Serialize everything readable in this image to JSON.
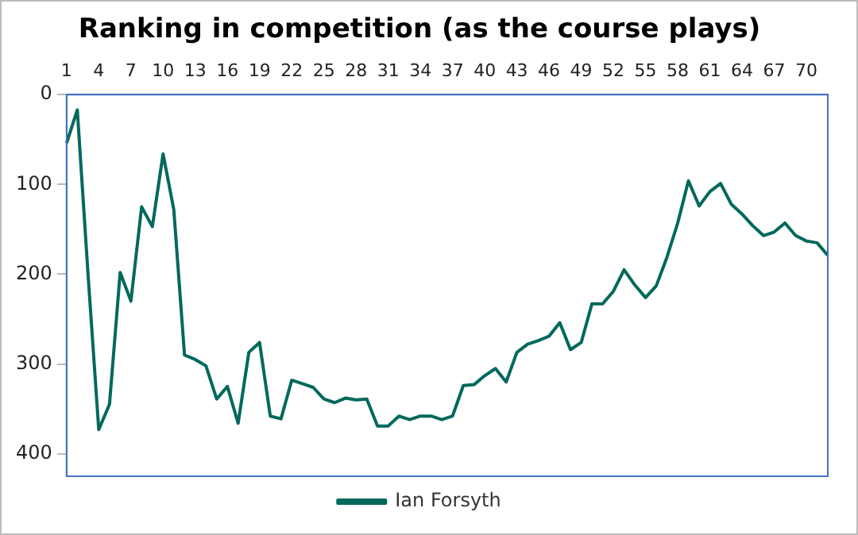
{
  "chart_data": {
    "type": "line",
    "title": "Ranking in competition (as the course plays)",
    "categories": [
      "1",
      null,
      null,
      "4",
      null,
      null,
      "7",
      null,
      null,
      "10",
      null,
      null,
      "13",
      null,
      null,
      "16",
      null,
      null,
      "19",
      null,
      null,
      "22",
      null,
      null,
      "25",
      null,
      null,
      "28",
      null,
      null,
      "31",
      null,
      null,
      "34",
      null,
      null,
      "37",
      null,
      null,
      "40",
      null,
      null,
      "43",
      null,
      null,
      "46",
      null,
      null,
      "49",
      null,
      null,
      "52",
      null,
      null,
      "55",
      null,
      null,
      "58",
      null,
      null,
      "61",
      null,
      null,
      "64",
      null,
      null,
      "67",
      null,
      null,
      "70",
      null,
      null
    ],
    "series": [
      {
        "name": "Ian Forsyth",
        "color": "#00695c",
        "values": [
          54,
          17,
          200,
          373,
          345,
          198,
          230,
          125,
          147,
          66,
          128,
          290,
          295,
          302,
          339,
          325,
          366,
          287,
          276,
          358,
          361,
          318,
          322,
          326,
          339,
          343,
          338,
          340,
          339,
          369,
          369,
          358,
          362,
          358,
          358,
          362,
          358,
          324,
          323,
          313,
          305,
          320,
          287,
          278,
          274,
          269,
          254,
          284,
          276,
          233,
          233,
          219,
          195,
          212,
          226,
          213,
          181,
          143,
          96,
          124,
          108,
          99,
          122,
          133,
          146,
          157,
          153,
          143,
          157,
          163,
          165,
          179
        ]
      }
    ],
    "ylim": [
      425,
      0
    ],
    "yticks": [
      0,
      100,
      200,
      300,
      400
    ],
    "grid": false,
    "legend": "bottom",
    "marker": "none",
    "line_style": "solid"
  }
}
